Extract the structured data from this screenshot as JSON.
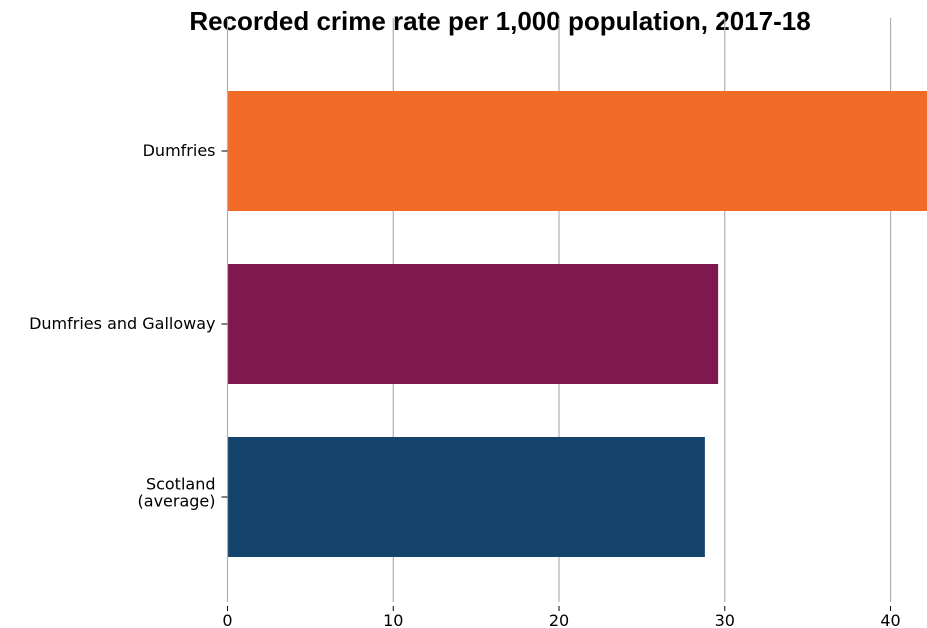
{
  "chart_data": {
    "type": "bar",
    "orientation": "horizontal",
    "title": "Recorded crime rate per 1,000 population, 2017-18",
    "xlabel": "",
    "ylabel": "",
    "categories": [
      "Dumfries",
      "Dumfries and Galloway",
      "Scotland\n(average)"
    ],
    "values": [
      42.2,
      29.6,
      28.8
    ],
    "colors": [
      "#f26b26",
      "#7f184e",
      "#14446b"
    ],
    "xlim": [
      0,
      42.2
    ],
    "xticks": [
      0,
      10,
      20,
      30,
      40
    ],
    "grid": "vertical",
    "legend": "none"
  }
}
